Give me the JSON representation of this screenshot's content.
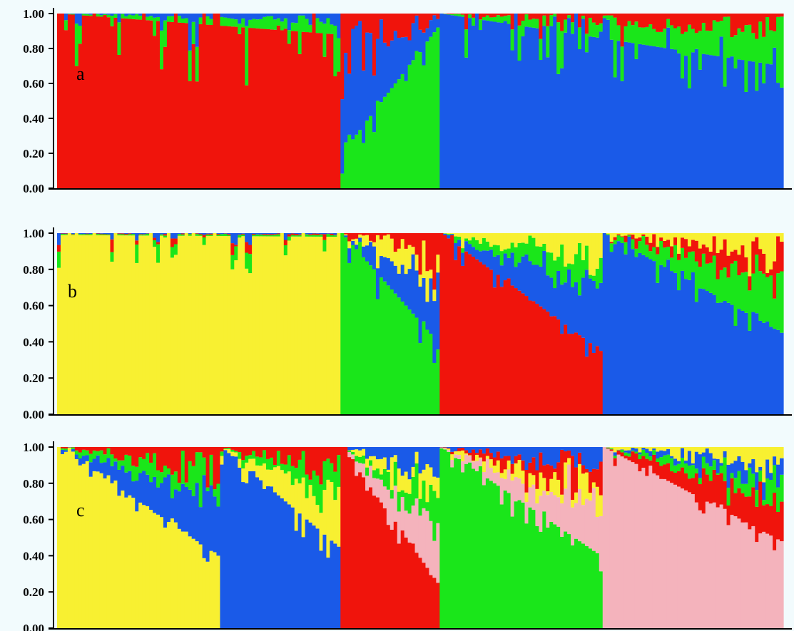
{
  "figure": {
    "background": "#f2fbfd"
  },
  "colors": {
    "red": "#f0140c",
    "green": "#1ae61a",
    "blue": "#1a5ae8",
    "yellow": "#f8f031",
    "pink": "#f4b3bc"
  },
  "chart_data": [
    {
      "type": "bar",
      "stacked": true,
      "panel_label": "a",
      "ylim": [
        0,
        1
      ],
      "yticks": [
        "0.00",
        "0.20",
        "0.40",
        "0.60",
        "0.80",
        "1.00"
      ],
      "individuals": 205,
      "clusters": [
        {
          "color": "red",
          "from": 0,
          "to": 80,
          "secondary": [
            "green",
            "blue"
          ],
          "admix_start": 0.0,
          "admix_end": 0.12,
          "admix_noise": 0.35
        },
        {
          "color": "green",
          "from": 80,
          "to": 108,
          "secondary": [
            "blue",
            "red"
          ],
          "admix_start": 0.8,
          "admix_end": 0.08,
          "admix_noise": 0.12
        },
        {
          "color": "blue",
          "from": 108,
          "to": 205,
          "secondary": [
            "green",
            "red"
          ],
          "admix_start": 0.0,
          "admix_end": 0.3,
          "admix_noise": 0.25
        }
      ]
    },
    {
      "type": "bar",
      "stacked": true,
      "panel_label": "b",
      "ylim": [
        0,
        1
      ],
      "yticks": [
        "0.00",
        "0.20",
        "0.40",
        "0.60",
        "0.80",
        "1.00"
      ],
      "individuals": 205,
      "clusters": [
        {
          "color": "yellow",
          "from": 0,
          "to": 80,
          "secondary": [
            "green",
            "red",
            "blue"
          ],
          "admix_start": 0.01,
          "admix_end": 0.02,
          "admix_noise": 0.22
        },
        {
          "color": "green",
          "from": 80,
          "to": 108,
          "secondary": [
            "blue",
            "yellow",
            "red"
          ],
          "admix_start": 0.0,
          "admix_end": 0.6,
          "admix_noise": 0.15
        },
        {
          "color": "red",
          "from": 108,
          "to": 154,
          "secondary": [
            "blue",
            "green",
            "yellow"
          ],
          "admix_start": 0.0,
          "admix_end": 0.65,
          "admix_noise": 0.1
        },
        {
          "color": "blue",
          "from": 154,
          "to": 205,
          "secondary": [
            "green",
            "red",
            "yellow"
          ],
          "admix_start": 0.0,
          "admix_end": 0.55,
          "admix_noise": 0.12
        }
      ]
    },
    {
      "type": "bar",
      "stacked": true,
      "panel_label": "c",
      "ylim": [
        0,
        1
      ],
      "yticks": [
        "0.00",
        "0.20",
        "0.40",
        "0.60",
        "0.80",
        "1.00"
      ],
      "individuals": 205,
      "clusters": [
        {
          "color": "yellow",
          "from": 0,
          "to": 46,
          "secondary": [
            "blue",
            "green",
            "red"
          ],
          "admix_start": 0.0,
          "admix_end": 0.6,
          "admix_noise": 0.08
        },
        {
          "color": "blue",
          "from": 46,
          "to": 80,
          "secondary": [
            "yellow",
            "green",
            "red"
          ],
          "admix_start": 0.0,
          "admix_end": 0.55,
          "admix_noise": 0.12
        },
        {
          "color": "red",
          "from": 80,
          "to": 108,
          "secondary": [
            "pink",
            "green",
            "yellow",
            "blue"
          ],
          "admix_start": 0.0,
          "admix_end": 0.75,
          "admix_noise": 0.1
        },
        {
          "color": "green",
          "from": 108,
          "to": 154,
          "secondary": [
            "pink",
            "yellow",
            "red",
            "blue"
          ],
          "admix_start": 0.0,
          "admix_end": 0.6,
          "admix_noise": 0.12
        },
        {
          "color": "pink",
          "from": 154,
          "to": 205,
          "secondary": [
            "red",
            "green",
            "blue",
            "yellow"
          ],
          "admix_start": 0.0,
          "admix_end": 0.52,
          "admix_noise": 0.08
        }
      ]
    }
  ]
}
